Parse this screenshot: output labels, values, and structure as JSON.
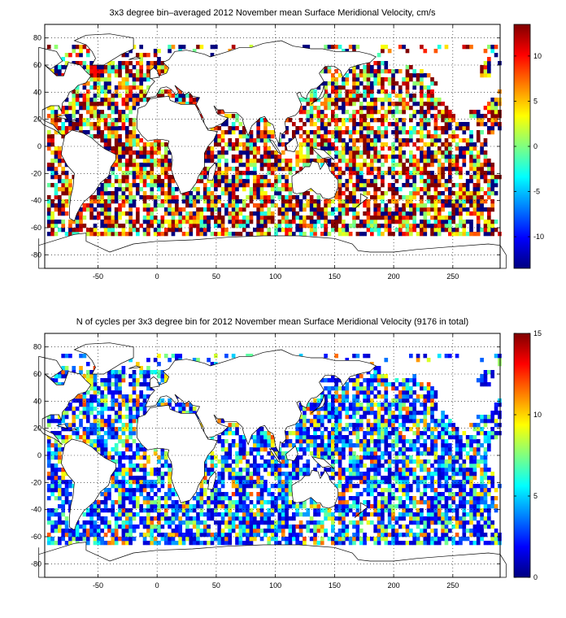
{
  "chart_data": [
    {
      "type": "heatmap",
      "title": "3x3 degree bin–averaged 2012 November mean Surface Meridional Velocity, cm/s",
      "xlim": [
        -95,
        290
      ],
      "ylim": [
        -90,
        90
      ],
      "xticks": [
        -50,
        0,
        50,
        100,
        150,
        200,
        250
      ],
      "yticks": [
        -80,
        -60,
        -40,
        -20,
        0,
        20,
        40,
        60,
        80
      ],
      "colorbar": {
        "min": -13.5,
        "max": 13.5,
        "ticks": [
          -10,
          -5,
          0,
          5,
          10
        ],
        "colormap": "jet"
      },
      "bin_size_deg": 3,
      "grid": true,
      "note_coverage": "bins cover ocean areas roughly 65S to 75N; land masked"
    },
    {
      "type": "heatmap",
      "title": "N of cycles per 3x3 degree bin for 2012 November mean Surface Meridional Velocity (9176 in total)",
      "xlim": [
        -95,
        290
      ],
      "ylim": [
        -90,
        90
      ],
      "xticks": [
        -50,
        0,
        50,
        100,
        150,
        200,
        250
      ],
      "yticks": [
        -80,
        -60,
        -40,
        -20,
        0,
        20,
        40,
        60,
        80
      ],
      "colorbar": {
        "min": 0,
        "max": 15,
        "ticks": [
          0,
          5,
          10,
          15
        ],
        "colormap": "jet"
      },
      "bin_size_deg": 3,
      "grid": true
    }
  ]
}
